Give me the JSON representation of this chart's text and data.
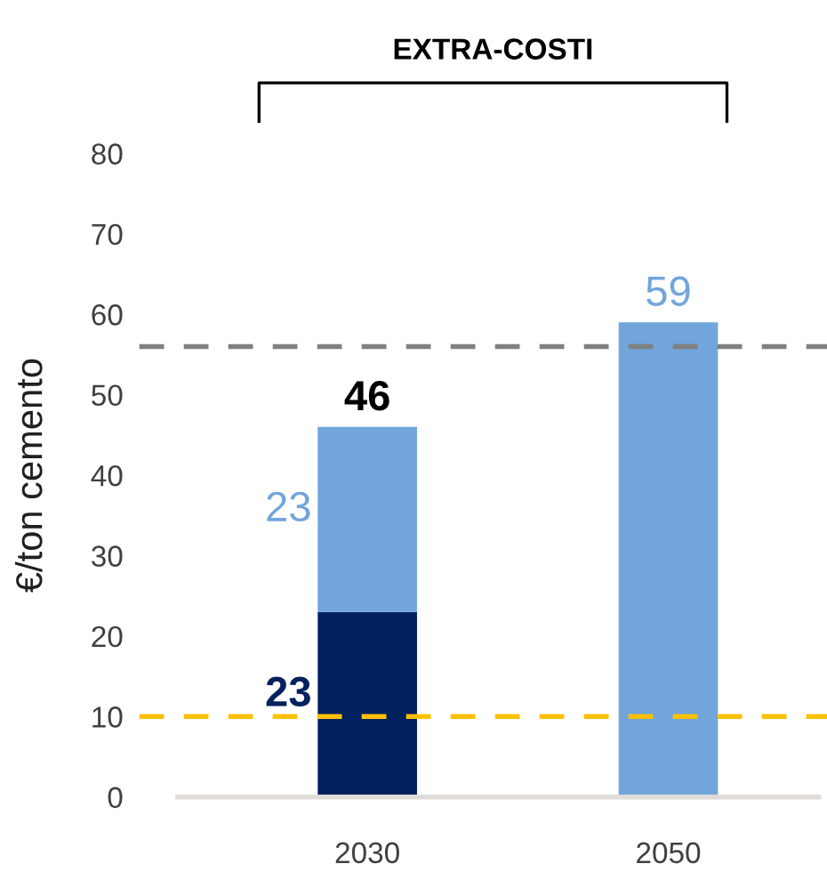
{
  "chart_data": {
    "type": "bar",
    "stacked": true,
    "ylabel": "€/ton cemento",
    "categories": [
      "2030",
      "2050"
    ],
    "series": [
      {
        "color": "#03215e",
        "values": [
          23,
          null
        ],
        "value_labels": [
          "23",
          null
        ]
      },
      {
        "color": "#71a5dc",
        "values": [
          23,
          59
        ],
        "value_labels": [
          "23",
          "59"
        ]
      }
    ],
    "totals": [
      "46",
      null
    ],
    "ylim": [
      0,
      80
    ],
    "yticks": [
      0,
      10,
      20,
      30,
      40,
      50,
      60,
      70,
      80
    ],
    "grid": false,
    "ref_lines": [
      {
        "axis": "y",
        "value": 56,
        "color": "#808080",
        "line_style": "dashed"
      },
      {
        "axis": "y",
        "value": 10,
        "color": "#ffc000",
        "line_style": "dashed"
      }
    ],
    "annotations": [
      "EXTRA-COSTI"
    ]
  }
}
